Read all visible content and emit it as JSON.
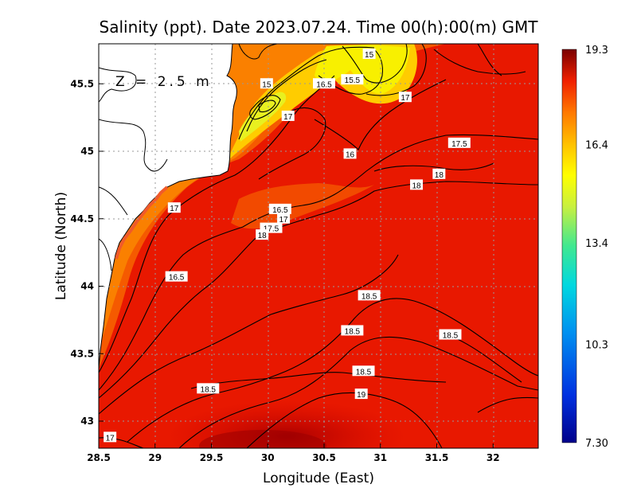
{
  "chart_data": {
    "type": "heatmap",
    "title": "Salinity (ppt). Date 2023.07.24. Time 00(h):00(m) GMT",
    "xlabel": "Longitude (East)",
    "ylabel": "Latitude (North)",
    "annotation": "Z = 2.5 m",
    "xlim": [
      28.5,
      32.4
    ],
    "ylim": [
      42.8,
      45.8
    ],
    "x_ticks": [
      "28.5",
      "29",
      "29.5",
      "30",
      "30.5",
      "31",
      "31.5",
      "32"
    ],
    "y_ticks": [
      "43",
      "43.5",
      "44",
      "44.5",
      "45",
      "45.5"
    ],
    "grid": true,
    "colorbar": {
      "min": 7.3,
      "max": 19.3,
      "tick_labels": [
        "19.3",
        "16.4",
        "13.4",
        "10.3",
        "7.30"
      ],
      "tick_values": [
        19.3,
        16.4,
        13.4,
        10.3,
        7.3
      ]
    },
    "contour_labels": [
      {
        "text": "15",
        "lon": 30.9,
        "lat": 45.72
      },
      {
        "text": "15",
        "lon": 29.99,
        "lat": 45.5
      },
      {
        "text": "16.5",
        "lon": 30.5,
        "lat": 45.5
      },
      {
        "text": "15.5",
        "lon": 30.75,
        "lat": 45.53
      },
      {
        "text": "17",
        "lon": 31.22,
        "lat": 45.4
      },
      {
        "text": "17",
        "lon": 30.18,
        "lat": 45.26
      },
      {
        "text": "17.5",
        "lon": 31.7,
        "lat": 45.06
      },
      {
        "text": "16",
        "lon": 30.73,
        "lat": 44.98
      },
      {
        "text": "18",
        "lon": 31.52,
        "lat": 44.83
      },
      {
        "text": "18",
        "lon": 31.32,
        "lat": 44.75
      },
      {
        "text": "17",
        "lon": 29.17,
        "lat": 44.58
      },
      {
        "text": "16.5",
        "lon": 30.11,
        "lat": 44.57
      },
      {
        "text": "17",
        "lon": 30.14,
        "lat": 44.5
      },
      {
        "text": "17.5",
        "lon": 30.03,
        "lat": 44.43
      },
      {
        "text": "18",
        "lon": 29.95,
        "lat": 44.38
      },
      {
        "text": "16.5",
        "lon": 29.19,
        "lat": 44.07
      },
      {
        "text": "18.5",
        "lon": 30.9,
        "lat": 43.93
      },
      {
        "text": "18.5",
        "lon": 30.75,
        "lat": 43.67
      },
      {
        "text": "18.5",
        "lon": 31.62,
        "lat": 43.64
      },
      {
        "text": "18.5",
        "lon": 30.85,
        "lat": 43.37
      },
      {
        "text": "18.5",
        "lon": 29.47,
        "lat": 43.24
      },
      {
        "text": "19",
        "lon": 30.83,
        "lat": 43.2
      },
      {
        "text": "17",
        "lon": 28.6,
        "lat": 42.88
      }
    ]
  }
}
